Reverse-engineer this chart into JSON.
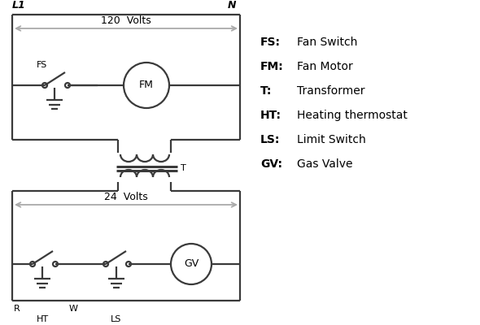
{
  "bg_color": "#ffffff",
  "line_color": "#3a3a3a",
  "gray_color": "#aaaaaa",
  "text_color": "#000000",
  "legend_items": [
    [
      "FS:",
      "Fan Switch"
    ],
    [
      "FM:",
      "Fan Motor"
    ],
    [
      "T:",
      "Transformer"
    ],
    [
      "HT:",
      "Heating thermostat"
    ],
    [
      "LS:",
      "Limit Switch"
    ],
    [
      "GV:",
      "Gas Valve"
    ]
  ],
  "fig_width": 5.9,
  "fig_height": 4.0,
  "dpi": 100
}
